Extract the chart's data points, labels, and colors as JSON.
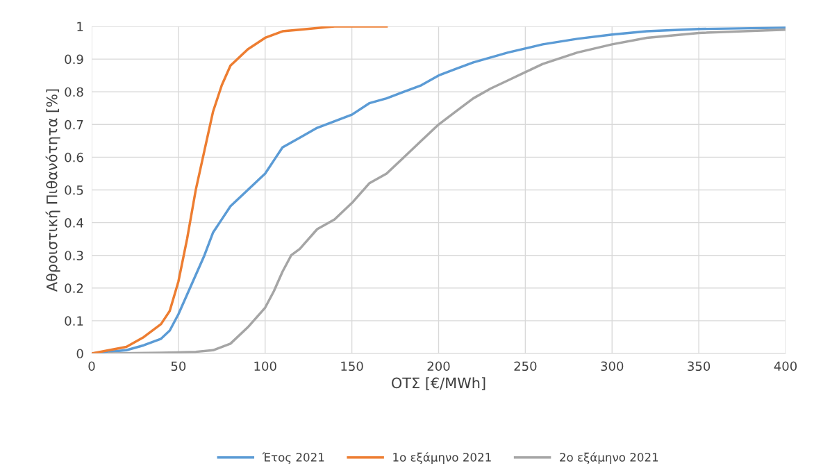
{
  "chart_data": {
    "type": "line",
    "xlabel": "ΟΤΣ [€/MWh]",
    "ylabel": "Αθροιστική Πιθανότητα [%]",
    "xlim": [
      0,
      400
    ],
    "xticks": [
      0,
      50,
      100,
      150,
      200,
      250,
      300,
      350,
      400
    ],
    "ylim": [
      0,
      1
    ],
    "yticks": [
      0,
      0.1,
      0.2,
      0.3,
      0.4,
      0.5,
      0.6,
      0.7,
      0.8,
      0.9,
      1
    ],
    "grid": true,
    "legend": "bottom",
    "marker": "none",
    "line_style": "solid",
    "series": [
      {
        "name": "Έτος 2021",
        "color": "#5b9bd5",
        "x": [
          0,
          20,
          30,
          40,
          45,
          50,
          55,
          60,
          65,
          70,
          75,
          80,
          90,
          100,
          105,
          110,
          120,
          130,
          140,
          150,
          160,
          170,
          180,
          190,
          200,
          210,
          220,
          240,
          260,
          280,
          300,
          320,
          350,
          400
        ],
        "values": [
          0,
          0.01,
          0.025,
          0.045,
          0.07,
          0.12,
          0.18,
          0.24,
          0.3,
          0.37,
          0.41,
          0.45,
          0.5,
          0.55,
          0.59,
          0.63,
          0.66,
          0.69,
          0.71,
          0.73,
          0.765,
          0.78,
          0.8,
          0.82,
          0.85,
          0.87,
          0.89,
          0.92,
          0.945,
          0.962,
          0.975,
          0.985,
          0.992,
          0.996
        ]
      },
      {
        "name": "1ο εξάμηνο 2021",
        "color": "#ed7d31",
        "x": [
          0,
          10,
          20,
          30,
          40,
          45,
          50,
          55,
          60,
          65,
          70,
          75,
          80,
          90,
          100,
          110,
          120,
          140,
          170
        ],
        "values": [
          0,
          0.01,
          0.02,
          0.05,
          0.09,
          0.13,
          0.22,
          0.35,
          0.5,
          0.62,
          0.74,
          0.82,
          0.88,
          0.93,
          0.965,
          0.985,
          0.99,
          1,
          1
        ]
      },
      {
        "name": "2ο εξάμηνο 2021",
        "color": "#a5a5a5",
        "x": [
          10,
          40,
          60,
          70,
          80,
          90,
          100,
          105,
          110,
          115,
          120,
          130,
          140,
          150,
          160,
          170,
          180,
          190,
          200,
          210,
          220,
          230,
          240,
          250,
          260,
          280,
          300,
          320,
          350,
          400
        ],
        "values": [
          0,
          0.002,
          0.005,
          0.01,
          0.03,
          0.08,
          0.14,
          0.19,
          0.25,
          0.3,
          0.32,
          0.38,
          0.41,
          0.46,
          0.52,
          0.55,
          0.6,
          0.65,
          0.7,
          0.74,
          0.78,
          0.81,
          0.835,
          0.86,
          0.885,
          0.92,
          0.945,
          0.965,
          0.98,
          0.99
        ]
      }
    ]
  }
}
